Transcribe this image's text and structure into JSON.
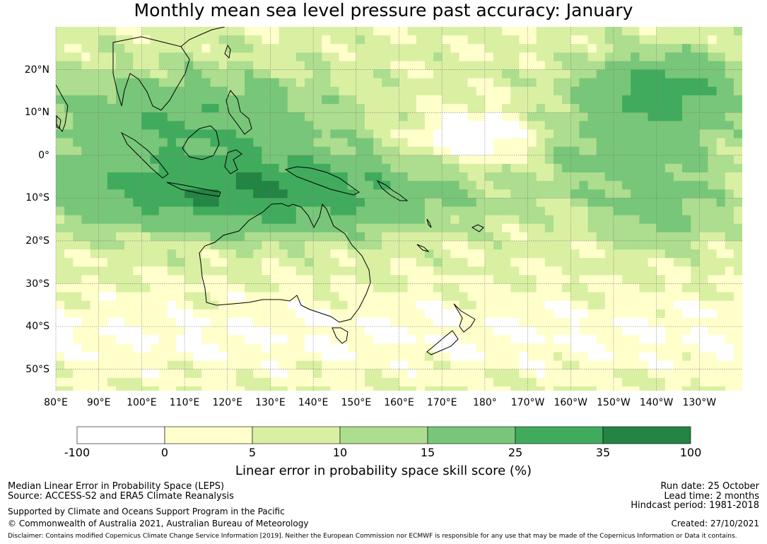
{
  "title": "Monthly mean sea level pressure past accuracy: January",
  "map": {
    "lat_range": [
      -55,
      30
    ],
    "lon_range": [
      80,
      240
    ],
    "gridlines": true,
    "lat_labels": [
      "20°N",
      "10°N",
      "0°",
      "10°S",
      "20°S",
      "30°S",
      "40°S",
      "50°S"
    ],
    "lat_values": [
      20,
      10,
      0,
      -10,
      -20,
      -30,
      -40,
      -50
    ],
    "lon_labels": [
      "80°E",
      "90°E",
      "100°E",
      "110°E",
      "120°E",
      "130°E",
      "140°E",
      "150°E",
      "160°E",
      "170°E",
      "180°",
      "170°W",
      "160°W",
      "150°W",
      "140°W",
      "130°W"
    ],
    "lon_values": [
      80,
      90,
      100,
      110,
      120,
      130,
      140,
      150,
      160,
      170,
      180,
      190,
      200,
      210,
      220,
      230
    ]
  },
  "colorbar": {
    "ticks": [
      "-100",
      "0",
      "5",
      "10",
      "15",
      "25",
      "35",
      "100"
    ],
    "colors": [
      "#ffffff",
      "#ffffcc",
      "#d9f0a3",
      "#addd8e",
      "#78c679",
      "#41ab5d",
      "#238443"
    ],
    "label": "Linear error in probability space skill score (%)"
  },
  "info": {
    "line1": "Median Linear Error in Probability Space (LEPS)",
    "line2": "Source: ACCESS-S2 and ERA5 Climate Reanalysis",
    "line3": "Supported by Climate and Oceans Support Program in the Pacific",
    "line4": "© Commonwealth of Australia 2021, Australian Bureau of Meteorology",
    "run_date": "Run date: 25 October",
    "lead_time": "Lead time: 2 months",
    "hindcast": "Hindcast period: 1981-2018",
    "created": "Created: 27/10/2021",
    "disclaimer": "Disclaimer: Contains modified Copernicus Climate Change Service Information [2019]. Neither the European Commission nor ECMWF is responsible for any use that may be made of the Copernicus Information or Data it contains."
  }
}
